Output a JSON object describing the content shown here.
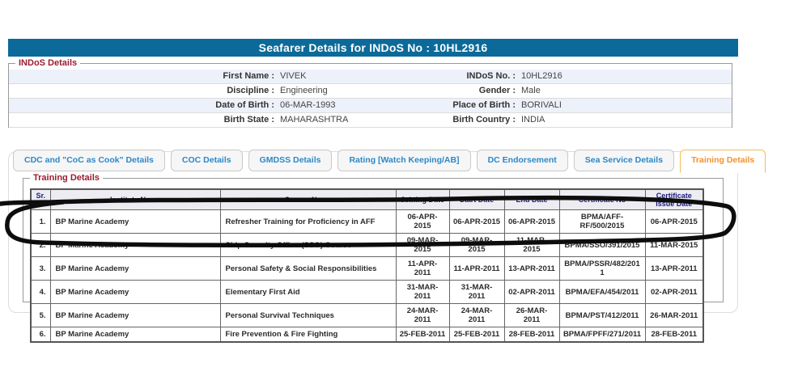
{
  "colors": {
    "title_bar_bg": "#0B6A99",
    "legend_text": "#9B1C30",
    "tab_text": "#2C88C8",
    "active_tab_text": "#F0922B",
    "active_tab_border": "#F2BE55",
    "table_header_text": "#1B1B7E",
    "detail_row_alt_bg": "#EDF1FA",
    "annotation_stroke": "#0D0D0D"
  },
  "header": {
    "title": "Seafarer Details for INDoS No : 10HL2916"
  },
  "indos": {
    "legend": "INDoS Details",
    "rows": [
      {
        "left_label": "First Name :",
        "left_value": "VIVEK",
        "right_label": "INDoS No. :",
        "right_value": "10HL2916"
      },
      {
        "left_label": "Discipline :",
        "left_value": "Engineering",
        "right_label": "Gender :",
        "right_value": "Male"
      },
      {
        "left_label": "Date of Birth :",
        "left_value": "06-MAR-1993",
        "right_label": "Place of Birth :",
        "right_value": "BORIVALI"
      },
      {
        "left_label": "Birth State :",
        "left_value": "MAHARASHTRA",
        "right_label": "Birth Country :",
        "right_value": "INDIA"
      }
    ]
  },
  "tabs": [
    {
      "label": "CDC and \"CoC as Cook\" Details",
      "active": false
    },
    {
      "label": "COC Details",
      "active": false
    },
    {
      "label": "GMDSS Details",
      "active": false
    },
    {
      "label": "Rating [Watch Keeping/AB]",
      "active": false
    },
    {
      "label": "DC Endorsement",
      "active": false
    },
    {
      "label": "Sea Service Details",
      "active": false
    },
    {
      "label": "Training Details",
      "active": true
    }
  ],
  "training": {
    "legend": "Training Details",
    "columns": [
      "Sr.\nNo.",
      "Institute Name",
      "Course Name",
      "Joining Date",
      "Start Date",
      "End Date",
      "Certificate No",
      "Certificate\nIssue Date"
    ],
    "rows": [
      [
        "1.",
        "BP Marine Academy",
        "Refresher Training for Proficiency in AFF",
        "06-APR-2015",
        "06-APR-2015",
        "06-APR-2015",
        "BPMA/AFF-RF/500/2015",
        "06-APR-2015"
      ],
      [
        "2.",
        "BP Marine Academy",
        "Ship Security Officer(SSO) Course",
        "09-MAR-2015",
        "09-MAR-2015",
        "11-MAR-2015",
        "BPMA/SSO/391/2015",
        "11-MAR-2015"
      ],
      [
        "3.",
        "BP Marine Academy",
        "Personal Safety & Social Responsibilities",
        "11-APR-2011",
        "11-APR-2011",
        "13-APR-2011",
        "BPMA/PSSR/482/2011",
        "13-APR-2011"
      ],
      [
        "4.",
        "BP Marine Academy",
        "Elementary First Aid",
        "31-MAR-2011",
        "31-MAR-2011",
        "02-APR-2011",
        "BPMA/EFA/454/2011",
        "02-APR-2011"
      ],
      [
        "5.",
        "BP Marine Academy",
        "Personal Survival Techniques",
        "24-MAR-2011",
        "24-MAR-2011",
        "26-MAR-2011",
        "BPMA/PST/412/2011",
        "26-MAR-2011"
      ],
      [
        "6.",
        "BP Marine Academy",
        "Fire Prevention & Fire Fighting",
        "25-FEB-2011",
        "25-FEB-2011",
        "28-FEB-2011",
        "BPMA/FPFF/271/2011",
        "28-FEB-2011"
      ]
    ]
  }
}
